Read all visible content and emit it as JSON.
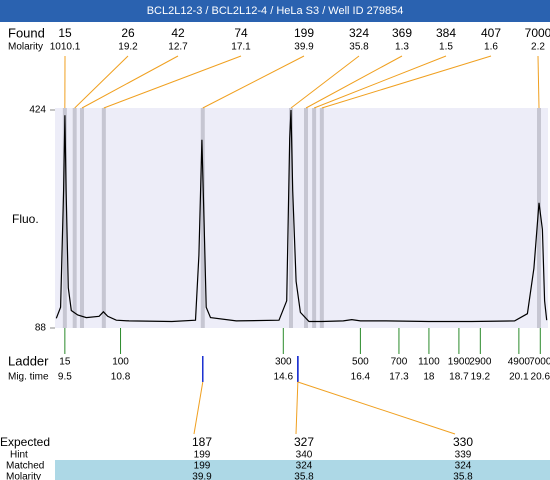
{
  "title": "BCL2L12-3 / BCL2L12-4 / HeLa S3 / Well ID 279854",
  "found": {
    "label": "Found",
    "sizes": [
      15,
      26,
      42,
      74,
      199,
      324,
      369,
      384,
      407,
      7000
    ],
    "molarity_label": "Molarity",
    "molarities": [
      1010.1,
      19.2,
      12.7,
      17.1,
      39.9,
      35.8,
      1.3,
      1.5,
      1.6,
      2.2
    ],
    "times": [
      9.5,
      9.73,
      9.9,
      10.41,
      12.72,
      14.78,
      15.13,
      15.32,
      15.5,
      20.57
    ]
  },
  "chart_data": {
    "type": "line",
    "y_label": "Fluo.",
    "color": "#000000",
    "x": [
      9.3,
      9.4,
      9.47,
      9.5,
      9.53,
      9.58,
      9.65,
      9.8,
      10.0,
      10.3,
      10.4,
      10.5,
      10.7,
      11.0,
      12.0,
      12.55,
      12.63,
      12.7,
      12.75,
      12.8,
      12.9,
      13.5,
      14.5,
      14.68,
      14.75,
      14.78,
      14.82,
      14.9,
      15.0,
      15.2,
      15.5,
      16.0,
      16.2,
      16.4,
      17.0,
      18.0,
      19.0,
      20.0,
      20.3,
      20.45,
      20.57,
      20.65,
      20.7,
      20.75
    ],
    "values": [
      103,
      120,
      300,
      416,
      300,
      150,
      115,
      108,
      104,
      106,
      113,
      106,
      100,
      99,
      98,
      100,
      200,
      378,
      250,
      120,
      104,
      99,
      100,
      130,
      380,
      424,
      300,
      160,
      112,
      98,
      98,
      99,
      101,
      99,
      99,
      98,
      98,
      99,
      110,
      180,
      281,
      240,
      130,
      100
    ],
    "xlim": [
      9.27,
      20.78
    ],
    "ylim": [
      88,
      424
    ],
    "yticks": [
      88,
      424
    ]
  },
  "ladder": {
    "label": "Ladder",
    "sizes": [
      15,
      100,
      300,
      500,
      700,
      1100,
      1900,
      2900,
      4900,
      7000
    ],
    "time_label": "Mig. time",
    "times": [
      9.5,
      10.8,
      14.6,
      16.4,
      17.3,
      18,
      18.7,
      19.2,
      20.1,
      20.6
    ]
  },
  "expected": {
    "label": "Expected",
    "values": [
      187,
      327,
      330
    ],
    "times": [
      12.72,
      14.94,
      14.94
    ],
    "hint_label": "Hint",
    "hints": [
      199,
      340,
      339
    ],
    "matched_label": "Matched",
    "matched": [
      199,
      324,
      324
    ],
    "molarity_label": "Molarity",
    "molarities": [
      39.9,
      35.8,
      35.8
    ]
  }
}
